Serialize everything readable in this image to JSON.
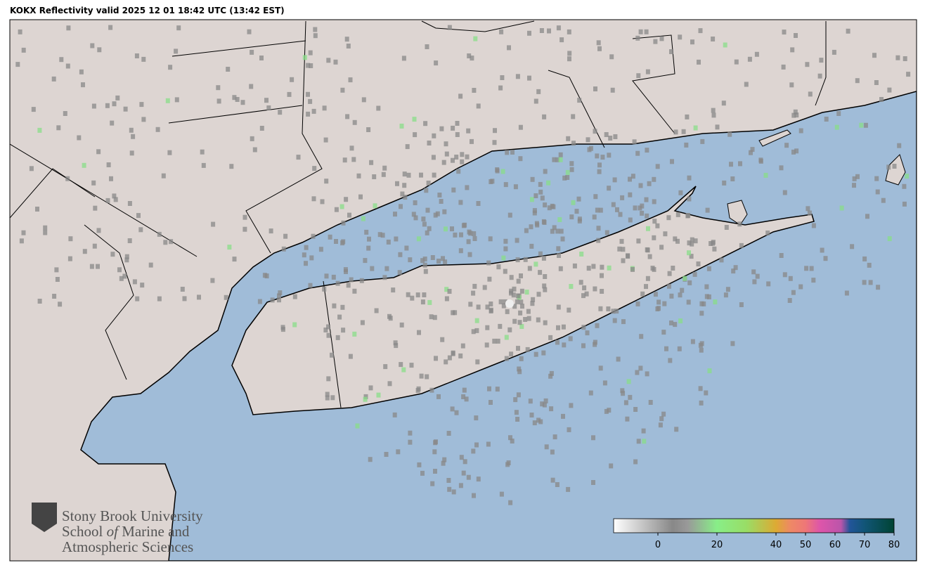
{
  "title": "KOKX Reflectivity valid 2025 12 01 18:42 UTC (13:42 EST)",
  "logo": {
    "line1": "Stony Brook University",
    "line2a": "School",
    "line2b": "of",
    "line2c": "Marine and",
    "line3": "Atmospheric Sciences"
  },
  "colorbar": {
    "lim": [
      -15,
      80
    ],
    "ticks": [
      0,
      20,
      40,
      50,
      60,
      70,
      80
    ],
    "stops": [
      {
        "value": -15,
        "color": "#ffffff"
      },
      {
        "value": 5,
        "color": "#888888"
      },
      {
        "value": 10,
        "color": "#999999"
      },
      {
        "value": 20,
        "color": "#88ee88"
      },
      {
        "value": 30,
        "color": "#99dd66"
      },
      {
        "value": 40,
        "color": "#ddaa33"
      },
      {
        "value": 45,
        "color": "#ee8866"
      },
      {
        "value": 50,
        "color": "#ee7777"
      },
      {
        "value": 55,
        "color": "#dd55aa"
      },
      {
        "value": 62,
        "color": "#bb55aa"
      },
      {
        "value": 65,
        "color": "#225599"
      },
      {
        "value": 70,
        "color": "#115577"
      },
      {
        "value": 80,
        "color": "#004433"
      }
    ]
  }
}
